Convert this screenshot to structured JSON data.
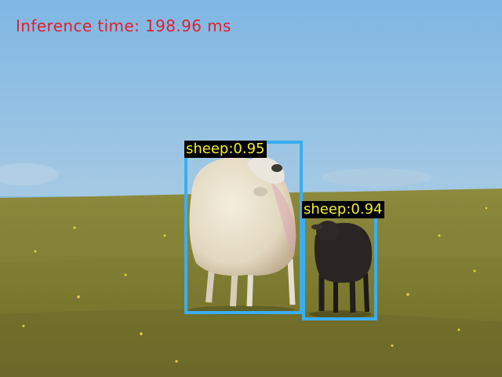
{
  "overlay": {
    "inference_text": "Inference time: 198.96 ms",
    "inference_color": "#e0202e"
  },
  "detections": [
    {
      "label_text": "sheep:0.95",
      "class": "sheep",
      "score": 0.95
    },
    {
      "label_text": "sheep:0.94",
      "class": "sheep",
      "score": 0.94
    }
  ],
  "colors": {
    "box": "#3aaef0",
    "label_text": "#f2ef3a",
    "label_bg": "#000000",
    "sky": "#86b9e1",
    "grass": "#7f7f32"
  }
}
